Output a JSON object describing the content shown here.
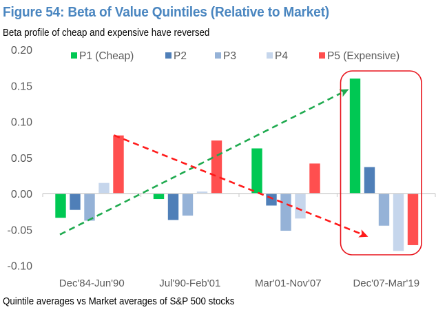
{
  "header": {
    "title": "Figure 54: Beta of Value Quintiles (Relative to Market)",
    "subtitle": "Beta profile of cheap and expensive have reversed"
  },
  "footer": {
    "source": "Quintile averages vs Market averages of S&P 500 stocks"
  },
  "chart_data": {
    "type": "bar",
    "title": "Figure 54: Beta of Value Quintiles (Relative to Market)",
    "subtitle": "Beta profile of cheap and expensive have reversed",
    "xlabel": "",
    "ylabel": "",
    "ylim": [
      -0.1,
      0.2
    ],
    "yticks": [
      "0.20",
      "0.15",
      "0.10",
      "0.05",
      "0.00",
      "-0.05",
      "-0.10"
    ],
    "ytick_values": [
      0.2,
      0.15,
      0.1,
      0.05,
      0.0,
      -0.05,
      -0.1
    ],
    "grid": false,
    "legend_position": "top",
    "categories": [
      "Dec'84-Jun'90",
      "Jul'90-Feb'01",
      "Mar'01-Nov'07",
      "Dec'07-Mar'19"
    ],
    "series": [
      {
        "name": "P1 (Cheap)",
        "color": "#00c853",
        "values": [
          -0.034,
          -0.008,
          0.063,
          0.16
        ]
      },
      {
        "name": "P2",
        "color": "#4f7fb8",
        "values": [
          -0.023,
          -0.037,
          -0.017,
          0.037
        ]
      },
      {
        "name": "P3",
        "color": "#95b2d7",
        "values": [
          -0.038,
          -0.031,
          -0.052,
          -0.045
        ]
      },
      {
        "name": "P4",
        "color": "#c6d6ec",
        "values": [
          0.015,
          0.003,
          -0.035,
          -0.08
        ]
      },
      {
        "name": "P5 (Expensive)",
        "color": "#ff4f4f",
        "values": [
          0.081,
          0.074,
          0.042,
          -0.072
        ]
      }
    ],
    "annotations": [
      {
        "type": "dashed-arrow",
        "color": "#1faa4f",
        "description": "rising trend of cheap (P1) beta",
        "from": {
          "category": 0,
          "value": -0.057
        },
        "to": {
          "category": 3,
          "value": 0.145
        }
      },
      {
        "type": "dashed-arrow",
        "color": "#ff1a1a",
        "description": "falling trend of expensive (P5) beta",
        "from": {
          "category": 0.55,
          "value": 0.081
        },
        "to": {
          "category": 3,
          "value": -0.06
        }
      },
      {
        "type": "highlight-box",
        "color": "#e8141c",
        "description": "highlight of Dec'07-Mar'19 period",
        "category": 3
      }
    ]
  }
}
